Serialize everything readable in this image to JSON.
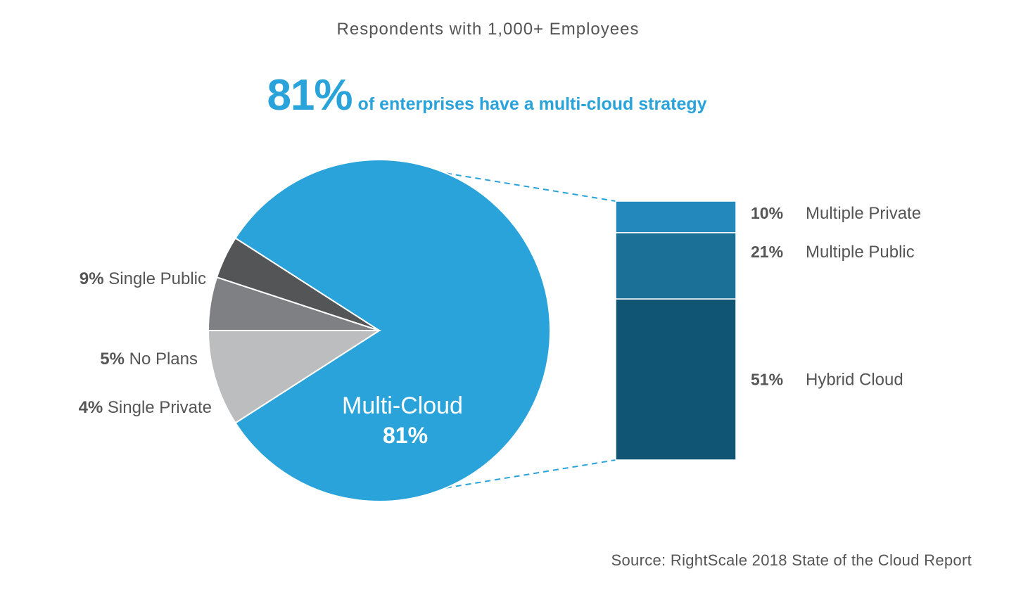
{
  "subtitle": "Respondents with 1,000+ Employees",
  "headline": {
    "big": "81%",
    "rest": "of enterprises have a multi-cloud strategy"
  },
  "source": "Source: RightScale 2018 State of the Cloud Report",
  "colors": {
    "accent": "#29a3da",
    "single_public": "#bcbdbf",
    "no_plans": "#7f8083",
    "single_private": "#545557",
    "multiple_private": "#2389bd",
    "multiple_public": "#1b7098",
    "hybrid_cloud": "#115575",
    "text": "#555555"
  },
  "chart_data": [
    {
      "type": "pie",
      "slices": [
        {
          "label": "Multi-Cloud",
          "pct_text": "81%",
          "value": 81
        },
        {
          "label": "Single Public",
          "pct_text": "9%",
          "value": 9
        },
        {
          "label": "No Plans",
          "pct_text": "5%",
          "value": 5
        },
        {
          "label": "Single Private",
          "pct_text": "4%",
          "value": 4
        }
      ],
      "center_label": {
        "name": "Multi-Cloud",
        "value": "81%"
      }
    },
    {
      "type": "bar",
      "stacked": true,
      "segments": [
        {
          "label": "Multiple Private",
          "pct_text": "10%",
          "value": 10
        },
        {
          "label": "Multiple Public",
          "pct_text": "21%",
          "value": 21
        },
        {
          "label": "Hybrid Cloud",
          "pct_text": "51%",
          "value": 51
        }
      ]
    }
  ]
}
